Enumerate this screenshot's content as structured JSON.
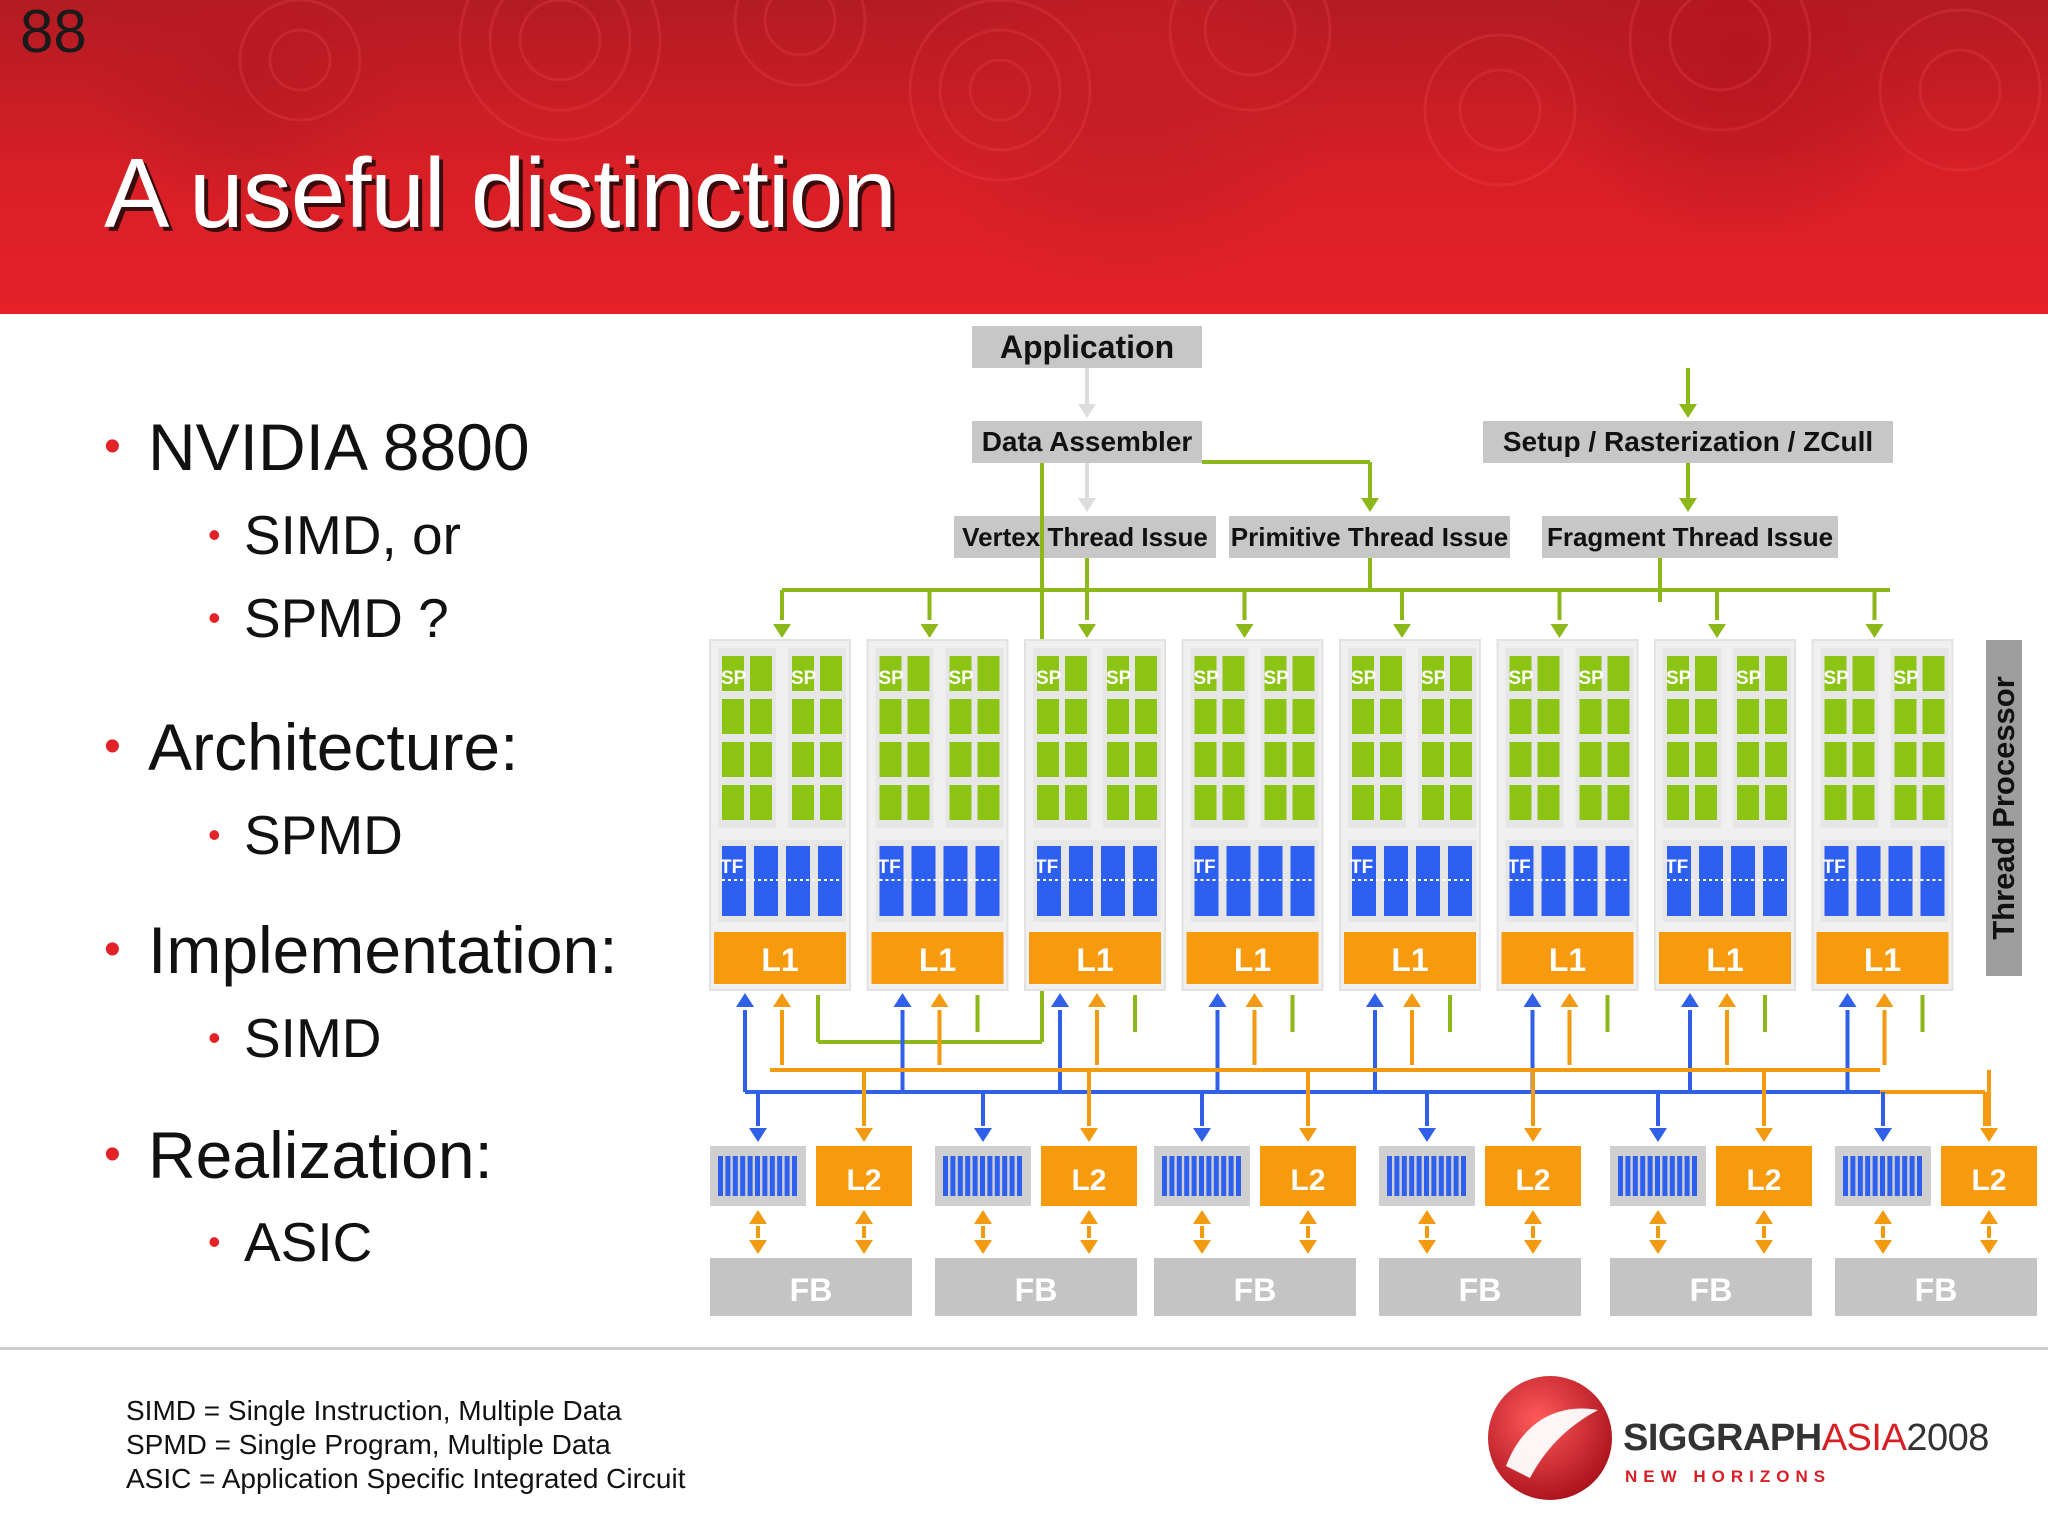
{
  "slide_number": "88",
  "title": "A useful distinction",
  "bullets": [
    {
      "text": "NVIDIA 8800",
      "sub": [
        "SIMD, or",
        "SPMD ?"
      ]
    },
    {
      "text": "Architecture:",
      "sub": [
        "SPMD"
      ]
    },
    {
      "text": "Implementation:",
      "sub": [
        "SIMD"
      ]
    },
    {
      "text": "Realization:",
      "sub": [
        "ASIC"
      ]
    }
  ],
  "definitions": [
    "SIMD = Single Instruction, Multiple Data",
    "SPMD = Single Program, Multiple Data",
    "ASIC = Application Specific Integrated Circuit"
  ],
  "diagram": {
    "application": "Application",
    "data_assembler": "Data Assembler",
    "setup": "Setup / Rasterization / ZCull",
    "vertex_issue": "Vertex Thread Issue",
    "primitive_issue": "Primitive Thread Issue",
    "fragment_issue": "Fragment Thread Issue",
    "thread_processor": "Thread Processor",
    "sp_label": "SP",
    "tf_label": "TF",
    "l1_label": "L1",
    "l2_label": "L2",
    "fb_label": "FB",
    "cluster_count": 8,
    "partition_count": 6,
    "colors": {
      "sp": "#8cc414",
      "tf": "#2d5ff0",
      "cache": "#f79a0e",
      "grey": "#c7c7c7",
      "green_line": "#8cb81a",
      "blue_line": "#3060e8",
      "orange_line": "#f29a12"
    }
  },
  "logo": {
    "siggraph": "SIGGRAPH",
    "asia": "ASIA",
    "year": "2008",
    "tagline": "NEW HORIZONS"
  }
}
